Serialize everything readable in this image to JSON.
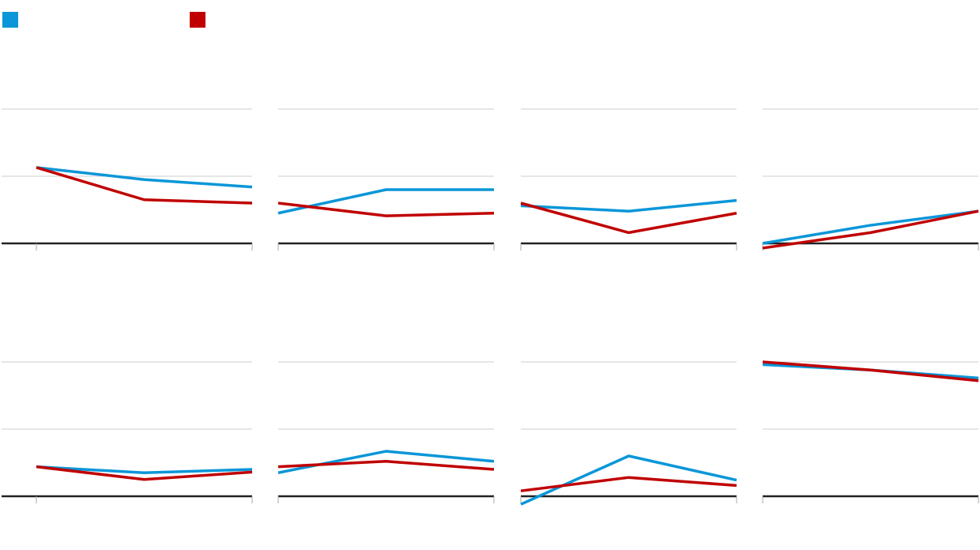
{
  "chart_data": [
    {
      "type": "line",
      "categories": [
        null,
        null,
        null
      ],
      "ylim": [
        0,
        2
      ],
      "yticks": [
        0,
        1,
        2
      ],
      "grid": true,
      "series": [
        {
          "color": "#0a96d8",
          "values": [
            1.13,
            0.95,
            0.84
          ]
        },
        {
          "color": "#c00000",
          "values": [
            1.13,
            0.65,
            0.6
          ]
        }
      ]
    },
    {
      "type": "line",
      "categories": [
        null,
        null,
        null
      ],
      "ylim": [
        0,
        2
      ],
      "yticks": [
        0,
        1,
        2
      ],
      "grid": true,
      "series": [
        {
          "color": "#0a96d8",
          "values": [
            0.45,
            0.8,
            0.8
          ]
        },
        {
          "color": "#c00000",
          "values": [
            0.6,
            0.41,
            0.45
          ]
        }
      ]
    },
    {
      "type": "line",
      "categories": [
        null,
        null,
        null
      ],
      "ylim": [
        0,
        2
      ],
      "yticks": [
        0,
        1,
        2
      ],
      "grid": true,
      "series": [
        {
          "color": "#0a96d8",
          "values": [
            0.56,
            0.48,
            0.64
          ]
        },
        {
          "color": "#c00000",
          "values": [
            0.6,
            0.16,
            0.45
          ]
        }
      ]
    },
    {
      "type": "line",
      "categories": [
        null,
        null,
        null
      ],
      "ylim": [
        0,
        2
      ],
      "yticks": [
        0,
        1,
        2
      ],
      "grid": true,
      "series": [
        {
          "color": "#0a96d8",
          "values": [
            0,
            0.27,
            0.48
          ]
        },
        {
          "color": "#c00000",
          "values": [
            -0.07,
            0.16,
            0.48
          ]
        }
      ]
    },
    {
      "type": "line",
      "categories": [
        null,
        null,
        null
      ],
      "ylim": [
        0,
        2
      ],
      "yticks": [
        0,
        1,
        2
      ],
      "grid": true,
      "series": [
        {
          "color": "#0a96d8",
          "values": [
            0.44,
            0.35,
            0.4
          ]
        },
        {
          "color": "#c00000",
          "values": [
            0.44,
            0.25,
            0.36
          ]
        }
      ]
    },
    {
      "type": "line",
      "categories": [
        null,
        null,
        null
      ],
      "ylim": [
        0,
        2
      ],
      "yticks": [
        0,
        1,
        2
      ],
      "grid": true,
      "series": [
        {
          "color": "#0a96d8",
          "values": [
            0.35,
            0.67,
            0.52
          ]
        },
        {
          "color": "#c00000",
          "values": [
            0.44,
            0.52,
            0.4
          ]
        }
      ]
    },
    {
      "type": "line",
      "categories": [
        null,
        null,
        null
      ],
      "ylim": [
        0,
        2
      ],
      "yticks": [
        0,
        1,
        2
      ],
      "grid": true,
      "series": [
        {
          "color": "#0a96d8",
          "values": [
            -0.12,
            0.6,
            0.24
          ]
        },
        {
          "color": "#c00000",
          "values": [
            0.08,
            0.28,
            0.16
          ]
        }
      ]
    },
    {
      "type": "line",
      "categories": [
        null,
        null,
        null
      ],
      "ylim": [
        0,
        2
      ],
      "yticks": [
        0,
        1,
        2
      ],
      "grid": true,
      "series": [
        {
          "color": "#0a96d8",
          "values": [
            1.96,
            1.88,
            1.76
          ]
        },
        {
          "color": "#c00000",
          "values": [
            2.0,
            1.88,
            1.72
          ]
        }
      ]
    }
  ]
}
